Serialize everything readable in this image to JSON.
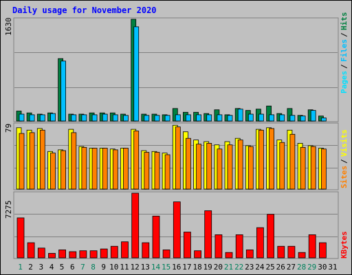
{
  "chart_data": {
    "type": "bar",
    "title": "Daily usage for November 2020",
    "days": [
      "1",
      "2",
      "3",
      "4",
      "5",
      "6",
      "7",
      "8",
      "9",
      "10",
      "11",
      "12",
      "13",
      "14",
      "15",
      "16",
      "17",
      "18",
      "19",
      "20",
      "21",
      "22",
      "23",
      "24",
      "25",
      "26",
      "27",
      "28",
      "29",
      "30",
      "31"
    ],
    "weekend_days": [
      1,
      7,
      8,
      14,
      15,
      21,
      22,
      28,
      29
    ],
    "panels": [
      {
        "label": "Pages / Files / Hits",
        "max_label": "1630",
        "ylim": [
          0,
          1630
        ],
        "series": [
          {
            "name": "Hits",
            "color": "#008040",
            "values": [
              160,
              130,
              110,
              130,
              1000,
              110,
              110,
              130,
              130,
              130,
              110,
              1630,
              110,
              110,
              100,
              200,
              140,
              140,
              120,
              180,
              100,
              200,
              170,
              190,
              240,
              120,
              200,
              90,
              180,
              80
            ]
          },
          {
            "name": "Files",
            "color": "#00c0ff",
            "values": [
              110,
              100,
              100,
              120,
              960,
              100,
              100,
              100,
              110,
              100,
              90,
              1510,
              90,
              90,
              90,
              100,
              100,
              100,
              100,
              100,
              90,
              190,
              110,
              110,
              100,
              100,
              90,
              80,
              170,
              50
            ]
          },
          {
            "name": "Pages",
            "color": "#00e0ff",
            "values": []
          }
        ]
      },
      {
        "label": "Sites / Visits",
        "max_label": "79",
        "ylim": [
          0,
          79
        ],
        "series": [
          {
            "name": "Visits",
            "color": "#ffff00",
            "values": [
              75,
              72,
              74,
              46,
              48,
              73,
              52,
              50,
              50,
              49,
              50,
              73,
              47,
              46,
              44,
              78,
              70,
              60,
              58,
              54,
              58,
              62,
              53,
              73,
              75,
              60,
              72,
              56,
              53,
              50
            ]
          },
          {
            "name": "Sites",
            "color": "#ff8000",
            "values": [
              68,
              69,
              72,
              44,
              47,
              69,
              51,
              50,
              50,
              48,
              50,
              71,
              45,
              45,
              42,
              76,
              62,
              55,
              56,
              49,
              54,
              60,
              52,
              72,
              74,
              57,
              67,
              51,
              52,
              49
            ]
          }
        ]
      },
      {
        "label": "KBytes",
        "max_label": "7275",
        "ylim": [
          0,
          7275
        ],
        "series": [
          {
            "name": "KBytes",
            "color": "#ff0000",
            "values": [
              4500,
              1700,
              1100,
              500,
              900,
              700,
              800,
              800,
              1000,
              1300,
              1800,
              7275,
              1700,
              4700,
              900,
              6300,
              2900,
              800,
              5300,
              2600,
              600,
              2600,
              900,
              3400,
              4900,
              1300,
              1300,
              600,
              2600,
              1700
            ]
          }
        ]
      }
    ]
  }
}
